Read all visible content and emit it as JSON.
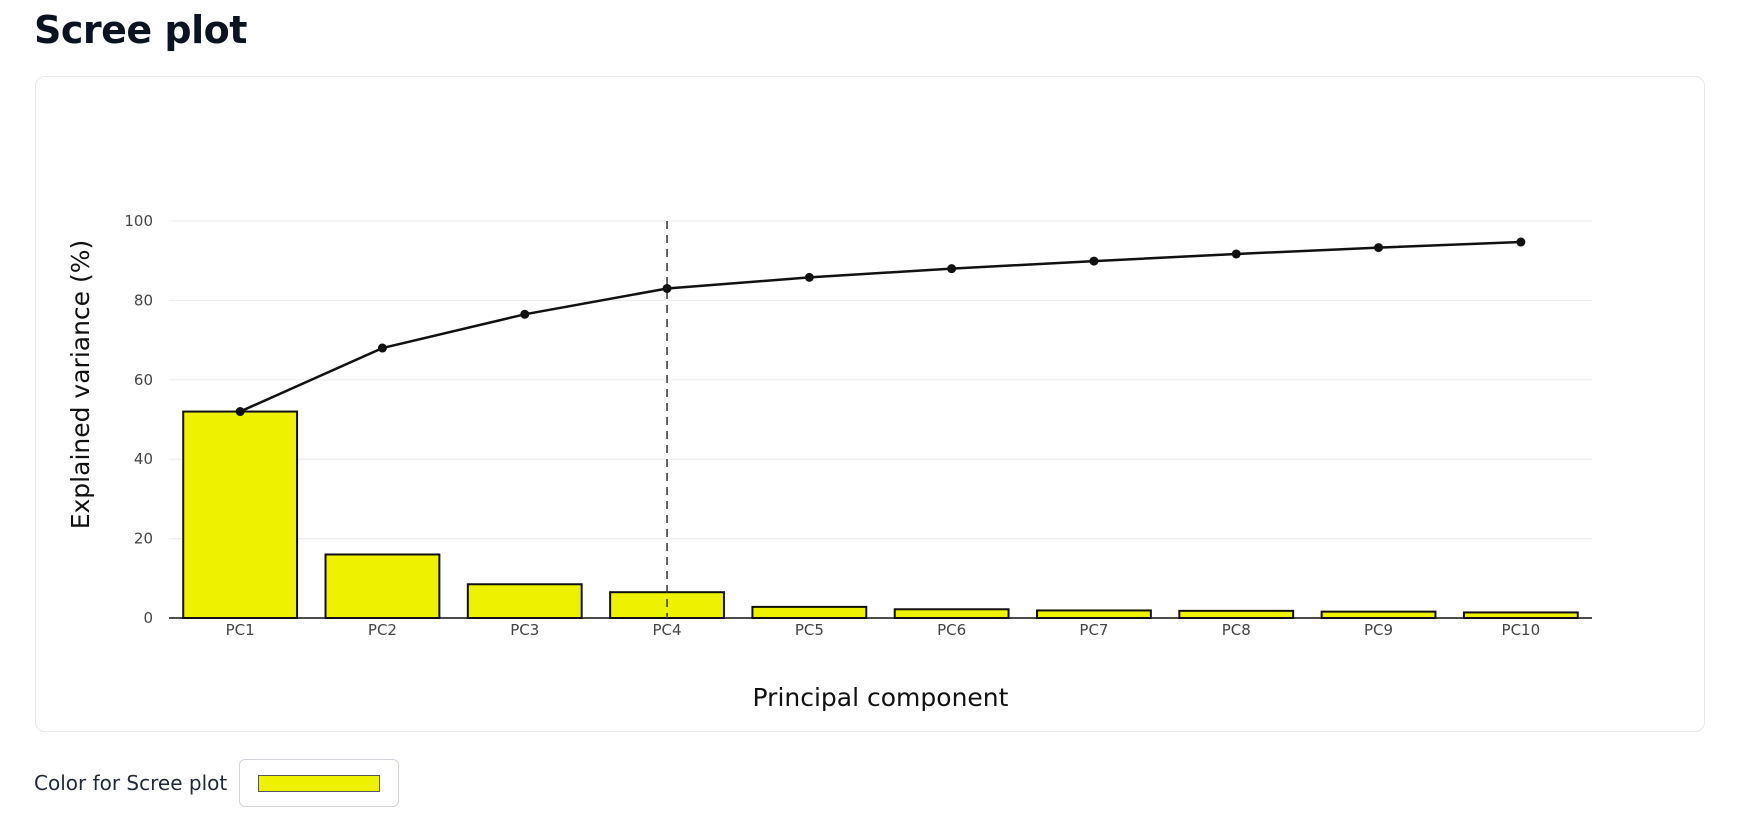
{
  "page": {
    "title": "Scree plot"
  },
  "color_picker": {
    "label": "Color for Scree plot",
    "value": "#eef200"
  },
  "colors": {
    "bar_fill": "#eef200",
    "bar_stroke": "#111111",
    "line": "#111111",
    "grid": "#ebebeb",
    "cutoff_line": "#333333"
  },
  "chart_data": {
    "type": "bar",
    "title": "",
    "xlabel": "Principal component",
    "ylabel": "Explained variance (%)",
    "ylim": [
      0,
      100
    ],
    "yticks": [
      0,
      20,
      40,
      60,
      80,
      100
    ],
    "grid": true,
    "categories": [
      "PC1",
      "PC2",
      "PC3",
      "PC4",
      "PC5",
      "PC6",
      "PC7",
      "PC8",
      "PC9",
      "PC10"
    ],
    "series": [
      {
        "type": "bar",
        "values": [
          52.0,
          16.0,
          8.5,
          6.5,
          2.8,
          2.2,
          1.9,
          1.8,
          1.6,
          1.4
        ]
      },
      {
        "type": "line",
        "values": [
          52.0,
          68.0,
          76.5,
          83.0,
          85.8,
          88.0,
          89.9,
          91.7,
          93.3,
          94.7
        ]
      }
    ],
    "vline_at": "PC4"
  }
}
